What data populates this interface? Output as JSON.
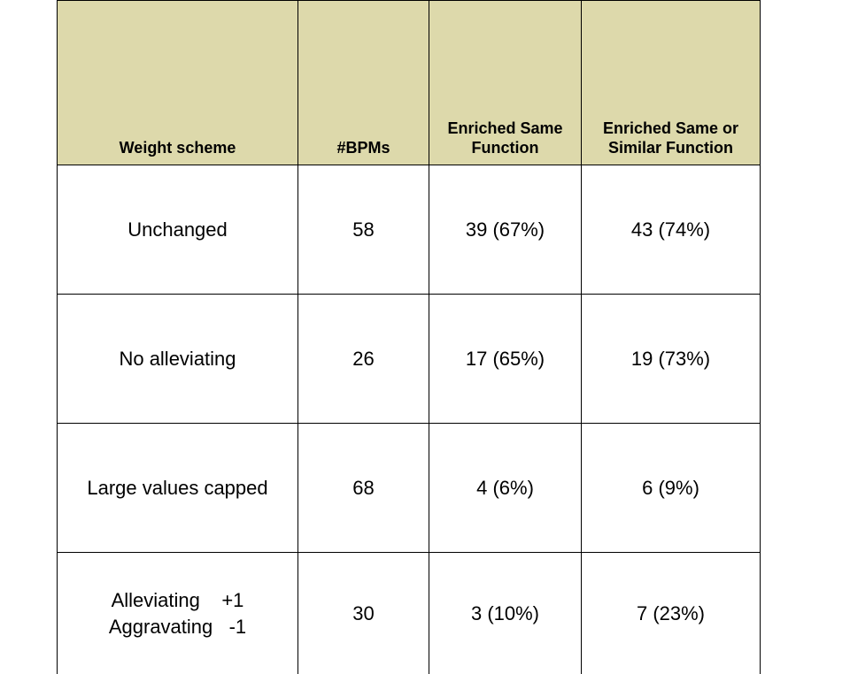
{
  "table": {
    "headers": [
      "Weight scheme",
      "#BPMs",
      "Enriched Same Function",
      "Enriched Same or Similar Function"
    ],
    "rows": [
      {
        "scheme": "Unchanged",
        "bpms": "58",
        "same": "39 (67%)",
        "similar": "43 (74%)"
      },
      {
        "scheme": "No alleviating",
        "bpms": "26",
        "same": "17 (65%)",
        "similar": "19 (73%)"
      },
      {
        "scheme": "Large values capped",
        "bpms": "68",
        "same": "4 (6%)",
        "similar": "6 (9%)"
      },
      {
        "scheme_line1": "Alleviating    +1",
        "scheme_line2": "Aggravating   -1",
        "bpms": "30",
        "same": "3 (10%)",
        "similar": "7 (23%)"
      }
    ],
    "header_color": "#ddd9ab"
  }
}
